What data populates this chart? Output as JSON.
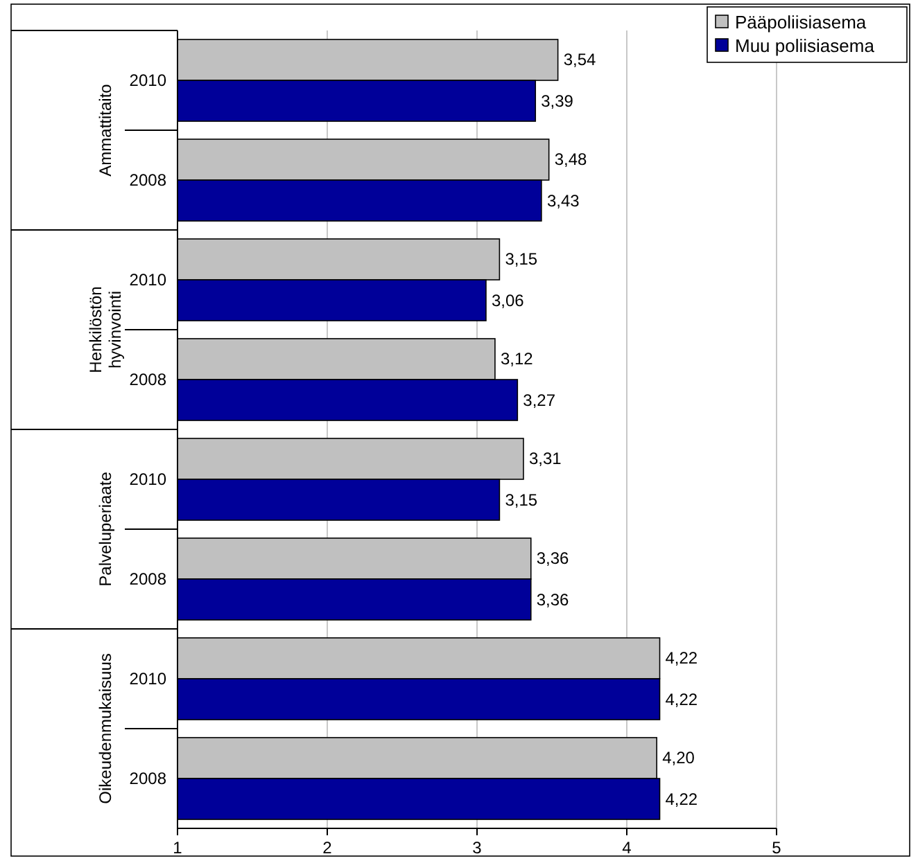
{
  "chart_data": {
    "type": "bar",
    "orientation": "horizontal",
    "categories": [
      "2010",
      "2008",
      "2010",
      "2008",
      "2010",
      "2008",
      "2010",
      "2008"
    ],
    "annotations": [
      "Ammattitaito",
      "Henkilöstön hyvinvointi",
      "Palveluperiaate",
      "Oikeudenmukaisuus"
    ],
    "series": [
      {
        "name": "Pääpoliisiasema",
        "color": "#c0c0c0",
        "values": [
          3.54,
          3.48,
          3.15,
          3.12,
          3.31,
          3.36,
          4.22,
          4.2
        ],
        "value_labels": [
          "3,54",
          "3,48",
          "3,15",
          "3,12",
          "3,31",
          "3,36",
          "4,22",
          "4,20"
        ]
      },
      {
        "name": "Muu poliisiasema",
        "color": "#000099",
        "values": [
          3.39,
          3.43,
          3.06,
          3.27,
          3.15,
          3.36,
          4.22,
          4.22
        ],
        "value_labels": [
          "3,39",
          "3,43",
          "3,06",
          "3,27",
          "3,15",
          "3,36",
          "4,22",
          "4,22"
        ]
      }
    ],
    "xlim": [
      1,
      5
    ],
    "xticks": [
      1,
      2,
      3,
      4,
      5
    ],
    "grid": "x",
    "legend": "top right"
  }
}
